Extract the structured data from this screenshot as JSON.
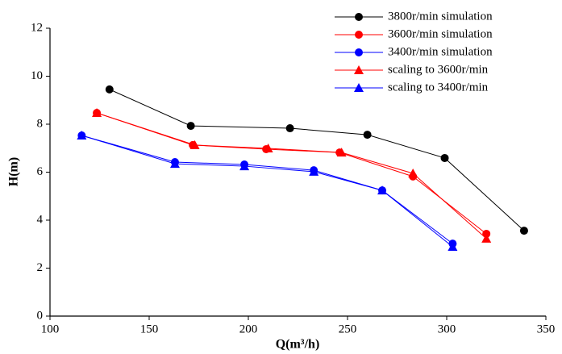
{
  "chart_data": {
    "type": "line",
    "xlabel": "Q(m³/h)",
    "ylabel": "H(m)",
    "xlim": [
      100,
      350
    ],
    "xticks": [
      100,
      150,
      200,
      250,
      300,
      350
    ],
    "ylim": [
      0,
      12
    ],
    "yticks": [
      0,
      2,
      4,
      6,
      8,
      10,
      12
    ],
    "legend": "upper right",
    "series": [
      {
        "name": "3800r/min simulation",
        "color": "#000000",
        "marker": "circle",
        "x": [
          130,
          171,
          221,
          260,
          299,
          339
        ],
        "values": [
          9.45,
          7.93,
          7.83,
          7.56,
          6.59,
          3.56
        ]
      },
      {
        "name": "3600r/min simulation",
        "color": "#ff0000",
        "marker": "circle",
        "x": [
          123.6,
          172,
          209,
          246,
          283,
          320
        ],
        "values": [
          8.47,
          7.13,
          6.96,
          6.82,
          5.82,
          3.43
        ]
      },
      {
        "name": "3400r/min simulation",
        "color": "#0000ff",
        "marker": "circle",
        "x": [
          116,
          163,
          198,
          233,
          267.5,
          303
        ],
        "values": [
          7.53,
          6.42,
          6.32,
          6.08,
          5.24,
          3.02
        ]
      },
      {
        "name": "scaling to 3600r/min",
        "color": "#ff0000",
        "marker": "triangle",
        "x": [
          123.6,
          173,
          210,
          247,
          283,
          320
        ],
        "values": [
          8.47,
          7.13,
          6.99,
          6.82,
          5.95,
          3.23
        ]
      },
      {
        "name": "scaling to 3400r/min",
        "color": "#0000ff",
        "marker": "triangle",
        "x": [
          116,
          163,
          198,
          233,
          267.5,
          303
        ],
        "values": [
          7.53,
          6.35,
          6.25,
          6.02,
          5.24,
          2.89
        ]
      }
    ]
  }
}
